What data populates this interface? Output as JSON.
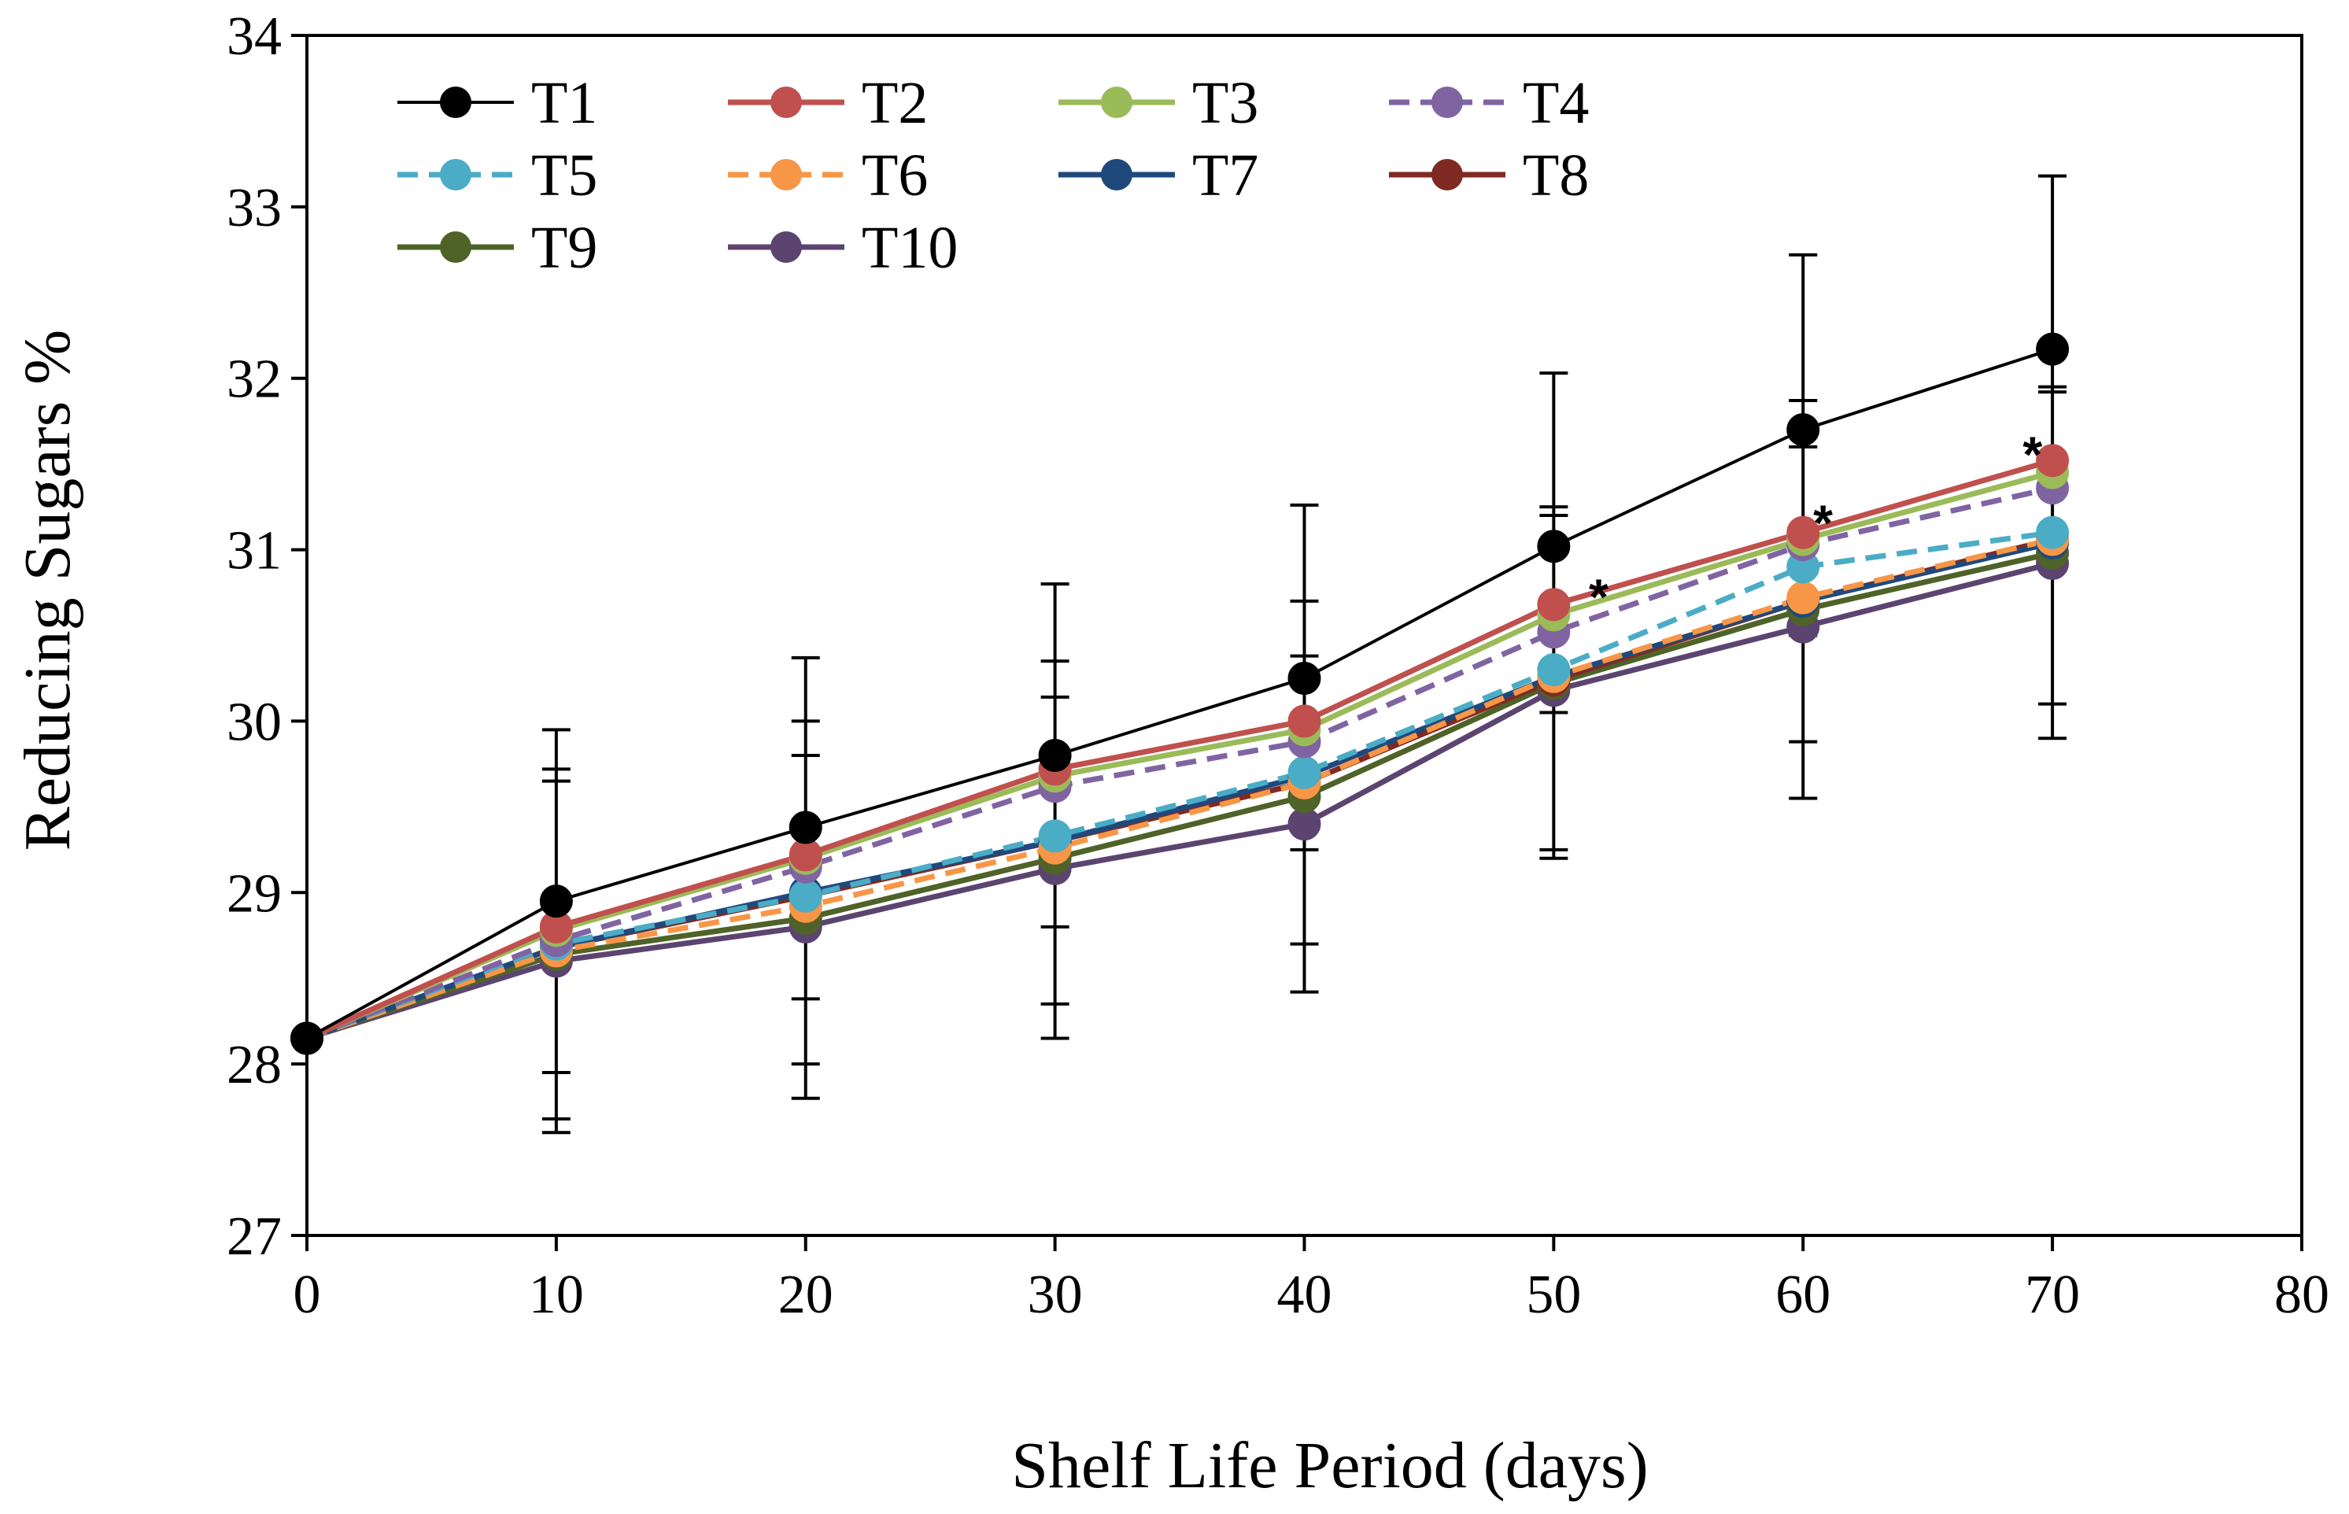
{
  "chart_data": {
    "type": "line",
    "title": "",
    "xlabel": "Shelf Life Period (days)",
    "ylabel": "Reducing Sugars %",
    "xlim": [
      0,
      80
    ],
    "ylim": [
      27,
      34
    ],
    "xticks": [
      "0",
      "10",
      "20",
      "30",
      "40",
      "50",
      "60",
      "70",
      "80"
    ],
    "yticks": [
      "27",
      "28",
      "29",
      "30",
      "31",
      "32",
      "33",
      "34"
    ],
    "grid": false,
    "legend_position": "top-left",
    "x": [
      0,
      10,
      20,
      30,
      40,
      50,
      60,
      70
    ],
    "series": [
      {
        "name": "T1",
        "color": "#000000",
        "dash": "solid",
        "values": [
          28.15,
          28.95,
          29.38,
          29.8,
          30.25,
          31.02,
          31.7,
          32.17
        ]
      },
      {
        "name": "T2",
        "color": "#c0504d",
        "dash": "solid",
        "values": [
          28.15,
          28.8,
          29.22,
          29.72,
          30.0,
          30.68,
          31.1,
          31.52
        ]
      },
      {
        "name": "T3",
        "color": "#9bbb59",
        "dash": "solid",
        "values": [
          28.15,
          28.78,
          29.2,
          29.68,
          29.95,
          30.62,
          31.06,
          31.45
        ]
      },
      {
        "name": "T4",
        "color": "#8064a2",
        "dash": "dashed",
        "values": [
          28.15,
          28.72,
          29.15,
          29.62,
          29.88,
          30.52,
          31.03,
          31.36
        ]
      },
      {
        "name": "T5",
        "color": "#4bacc6",
        "dash": "dashed",
        "values": [
          28.15,
          28.7,
          28.98,
          29.33,
          29.7,
          30.3,
          30.9,
          31.1
        ]
      },
      {
        "name": "T6",
        "color": "#f79646",
        "dash": "dashed",
        "values": [
          28.15,
          28.66,
          28.92,
          29.26,
          29.64,
          30.26,
          30.72,
          31.06
        ]
      },
      {
        "name": "T7",
        "color": "#1f497d",
        "dash": "solid",
        "values": [
          28.15,
          28.68,
          29.0,
          29.3,
          29.68,
          30.26,
          30.7,
          31.04
        ]
      },
      {
        "name": "T8",
        "color": "#7f2a22",
        "dash": "solid",
        "values": [
          28.15,
          28.68,
          28.98,
          29.3,
          29.64,
          30.24,
          30.7,
          31.06
        ]
      },
      {
        "name": "T9",
        "color": "#4f6228",
        "dash": "solid",
        "values": [
          28.15,
          28.64,
          28.85,
          29.2,
          29.56,
          30.22,
          30.65,
          30.98
        ]
      },
      {
        "name": "T10",
        "color": "#5c4470",
        "dash": "solid",
        "values": [
          28.15,
          28.6,
          28.8,
          29.14,
          29.4,
          30.18,
          30.55,
          30.92
        ]
      }
    ],
    "error_bars": [
      {
        "x": 10,
        "lows": [
          27.6,
          27.68,
          27.95
        ],
        "highs": [
          29.95,
          29.72,
          29.65
        ]
      },
      {
        "x": 20,
        "lows": [
          27.8,
          28.0,
          28.38
        ],
        "highs": [
          30.37,
          30.0,
          29.8
        ]
      },
      {
        "x": 30,
        "lows": [
          28.15,
          28.35,
          28.8
        ],
        "highs": [
          30.8,
          30.35,
          30.14
        ]
      },
      {
        "x": 40,
        "lows": [
          28.42,
          28.7,
          29.25
        ],
        "highs": [
          31.26,
          30.7,
          30.38
        ]
      },
      {
        "x": 50,
        "lows": [
          29.2,
          29.25,
          30.05
        ],
        "highs": [
          32.03,
          31.25,
          31.2
        ]
      },
      {
        "x": 60,
        "lows": [
          29.55,
          29.88,
          30.5
        ],
        "highs": [
          32.72,
          31.87,
          31.6
        ]
      },
      {
        "x": 70,
        "lows": [
          29.9,
          30.1,
          30.9
        ],
        "highs": [
          33.18,
          31.95,
          31.92
        ]
      }
    ],
    "annotations": [
      {
        "text": "*",
        "x": 51.8,
        "y": 30.79
      },
      {
        "text": "*",
        "x": 60.8,
        "y": 31.22
      },
      {
        "text": "*",
        "x": 69.2,
        "y": 31.62
      }
    ]
  }
}
